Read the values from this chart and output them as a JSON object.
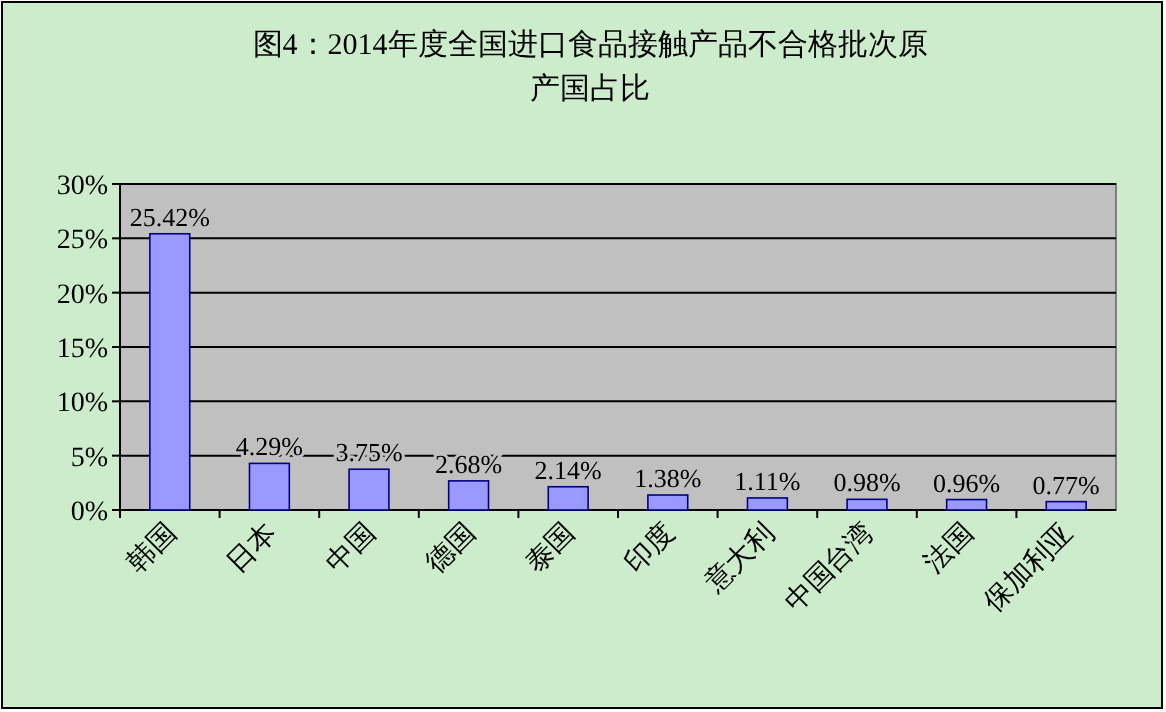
{
  "chart_data": {
    "type": "bar",
    "title": "图4：2014年度全国进口食品接触产品不合格批次原产国占比",
    "categories": [
      "韩国",
      "日本",
      "中国",
      "德国",
      "泰国",
      "印度",
      "意大利",
      "中国台湾",
      "法国",
      "保加利亚"
    ],
    "values": [
      25.42,
      4.29,
      3.75,
      2.68,
      2.14,
      1.38,
      1.11,
      0.98,
      0.96,
      0.77
    ],
    "value_labels": [
      "25.42%",
      "4.29%",
      "3.75%",
      "2.68%",
      "2.14%",
      "1.38%",
      "1.11%",
      "0.98%",
      "0.96%",
      "0.77%"
    ],
    "color": "#9999ff",
    "ylim": [
      0,
      30
    ],
    "yticks": [
      {
        "value": 0,
        "label": "0%"
      },
      {
        "value": 5,
        "label": "5%"
      },
      {
        "value": 10,
        "label": "10%"
      },
      {
        "value": 15,
        "label": "15%"
      },
      {
        "value": 20,
        "label": "20%"
      },
      {
        "value": 25,
        "label": "25%"
      },
      {
        "value": 30,
        "label": "30%"
      }
    ],
    "grid": "y"
  }
}
